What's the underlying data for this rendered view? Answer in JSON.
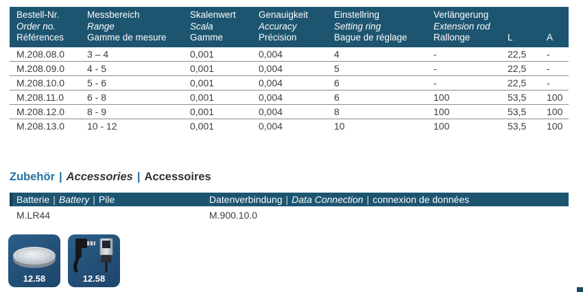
{
  "colors": {
    "header_bg": "#1d5570",
    "accent_blue": "#2470a4",
    "row_line": "#8c8c8c",
    "text_dark": "#3b3b3b",
    "tile_bg": "#234f77"
  },
  "main_table": {
    "columns": [
      {
        "de": "Bestell-Nr.",
        "en": "Order no.",
        "fr": "Références"
      },
      {
        "de": "Messbereich",
        "en": "Range",
        "fr": "Gamme de mesure"
      },
      {
        "de": "Skalenwert",
        "en": "Scala",
        "fr": "Gamme"
      },
      {
        "de": "Genauigkeit",
        "en": "Accuracy",
        "fr": "Précision"
      },
      {
        "de": "Einstellring",
        "en": "Setting ring",
        "fr": "Bague de réglage"
      },
      {
        "de": "Verlängerung",
        "en": "Extension rod",
        "fr": "Rallonge"
      },
      {
        "de": "L"
      },
      {
        "de": "A"
      }
    ],
    "rows": [
      [
        "M.208.08.0",
        "3 – 4",
        "0,001",
        "0,004",
        "4",
        "-",
        "22,5",
        "-"
      ],
      [
        "M.208.09.0",
        "4 - 5",
        "0,001",
        "0,004",
        "5",
        "-",
        "22,5",
        "-"
      ],
      [
        "M.208.10.0",
        "5 - 6",
        "0,001",
        "0,004",
        "6",
        "-",
        "22,5",
        "-"
      ],
      [
        "M.208.11.0",
        "6 - 8",
        "0,001",
        "0,004",
        "6",
        "100",
        "53,5",
        "100"
      ],
      [
        "M.208.12.0",
        "8 - 9",
        "0,001",
        "0,004",
        "8",
        "100",
        "53,5",
        "100"
      ],
      [
        "M.208.13.0",
        "10 - 12",
        "0,001",
        "0,004",
        "10",
        "100",
        "53,5",
        "100"
      ]
    ]
  },
  "accessories": {
    "title": {
      "de": "Zubehör",
      "en": "Accessories",
      "fr": "Accessoires",
      "sep": "|"
    },
    "battery_header": {
      "de": "Batterie",
      "en": "Battery",
      "fr": "Pile",
      "sep": "|"
    },
    "data_header": {
      "de": "Datenverbindung",
      "en": "Data Connection",
      "fr": "connexion de données",
      "sep": "|"
    },
    "battery_value": "M.LR44",
    "data_value": "M.900.10.0",
    "products": [
      {
        "label": "12.58",
        "image": "coin-cell-battery"
      },
      {
        "label": "12.58",
        "image": "data-cable"
      }
    ]
  }
}
